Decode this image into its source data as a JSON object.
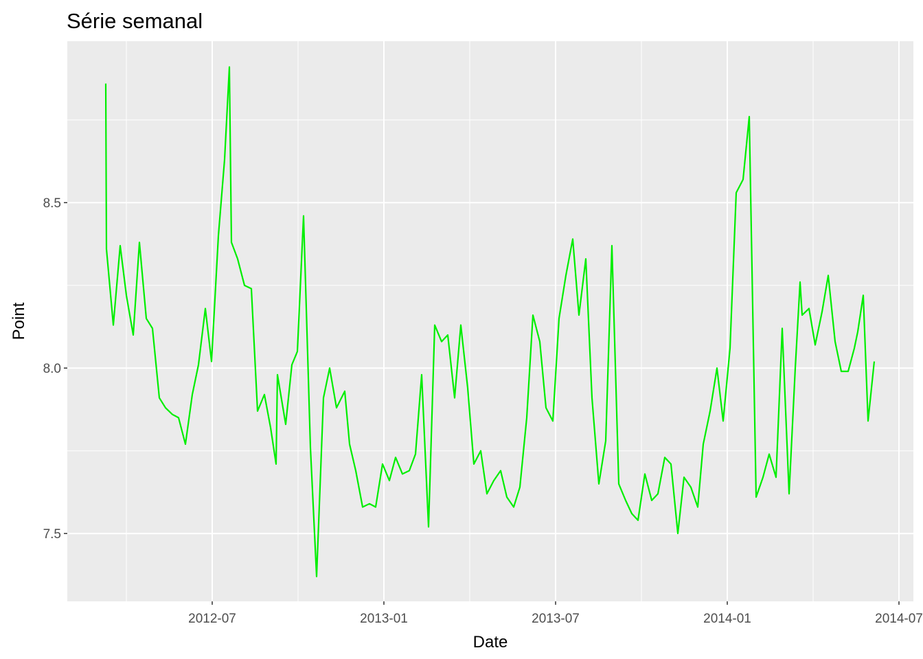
{
  "chart_data": {
    "type": "line",
    "title": "Série semanal",
    "xlabel": "Date",
    "ylabel": "Point",
    "x": [
      2012.19,
      2012.192,
      2012.212,
      2012.232,
      2012.25,
      2012.27,
      2012.288,
      2012.308,
      2012.326,
      2012.346,
      2012.364,
      2012.384,
      2012.402,
      2012.422,
      2012.442,
      2012.46,
      2012.48,
      2012.498,
      2012.518,
      2012.536,
      2012.55,
      2012.556,
      2012.574,
      2012.594,
      2012.614,
      2012.632,
      2012.652,
      2012.67,
      2012.686,
      2012.69,
      2012.714,
      2012.732,
      2012.748,
      2012.766,
      2012.786,
      2012.804,
      2012.824,
      2012.842,
      2012.862,
      2012.886,
      2012.9,
      2012.918,
      2012.938,
      2012.958,
      2012.976,
      2012.996,
      2013.016,
      2013.034,
      2013.054,
      2013.074,
      2013.092,
      2013.11,
      2013.13,
      2013.148,
      2013.168,
      2013.186,
      2013.206,
      2013.224,
      2013.244,
      2013.262,
      2013.282,
      2013.3,
      2013.32,
      2013.34,
      2013.358,
      2013.378,
      2013.396,
      2013.416,
      2013.434,
      2013.454,
      2013.472,
      2013.492,
      2013.51,
      2013.53,
      2013.55,
      2013.568,
      2013.588,
      2013.606,
      2013.626,
      2013.646,
      2013.664,
      2013.684,
      2013.704,
      2013.722,
      2013.74,
      2013.76,
      2013.78,
      2013.798,
      2013.818,
      2013.836,
      2013.856,
      2013.874,
      2013.894,
      2013.914,
      2013.93,
      2013.95,
      2013.97,
      2013.988,
      2014.008,
      2014.026,
      2014.046,
      2014.064,
      2014.084,
      2014.104,
      2014.122,
      2014.142,
      2014.16,
      2014.18,
      2014.198,
      2014.212,
      2014.218,
      2014.238,
      2014.256,
      2014.276,
      2014.294,
      2014.314,
      2014.332,
      2014.352,
      2014.37,
      2014.38,
      2014.396,
      2014.41,
      2014.428
    ],
    "values": [
      8.86,
      8.36,
      8.13,
      8.37,
      8.22,
      8.1,
      8.38,
      8.15,
      8.12,
      7.91,
      7.88,
      7.86,
      7.85,
      7.77,
      7.92,
      8.01,
      8.18,
      8.02,
      8.4,
      8.63,
      8.91,
      8.38,
      8.33,
      8.25,
      8.24,
      7.87,
      7.92,
      7.82,
      7.71,
      7.98,
      7.83,
      8.01,
      8.05,
      8.46,
      7.76,
      7.37,
      7.91,
      8.0,
      7.88,
      7.93,
      7.77,
      7.69,
      7.58,
      7.59,
      7.58,
      7.71,
      7.66,
      7.73,
      7.68,
      7.69,
      7.74,
      7.98,
      7.52,
      8.13,
      8.08,
      8.1,
      7.91,
      8.13,
      7.94,
      7.71,
      7.75,
      7.62,
      7.66,
      7.69,
      7.61,
      7.58,
      7.64,
      7.85,
      8.16,
      8.08,
      7.88,
      7.84,
      8.15,
      8.28,
      8.39,
      8.16,
      8.33,
      7.91,
      7.65,
      7.78,
      8.37,
      7.65,
      7.6,
      7.56,
      7.54,
      7.68,
      7.6,
      7.62,
      7.73,
      7.71,
      7.5,
      7.67,
      7.64,
      7.58,
      7.77,
      7.87,
      8.0,
      7.84,
      8.06,
      8.53,
      8.57,
      8.76,
      7.61,
      7.67,
      7.74,
      7.67,
      8.12,
      7.62,
      8.0,
      8.26,
      8.16,
      8.18,
      8.07,
      8.17,
      8.28,
      8.08,
      7.99,
      7.99,
      8.06,
      8.11,
      8.22,
      7.84,
      8.02
    ],
    "color": "#00ee00",
    "xlim": [
      2012.078,
      2014.542
    ],
    "xticks": [
      {
        "value": 2012.5,
        "label": "2012-07"
      },
      {
        "value": 2013,
        "label": "2013-01"
      },
      {
        "value": 2013.5,
        "label": "2013-07"
      },
      {
        "value": 2014,
        "label": "2014-01"
      },
      {
        "value": 2014.5,
        "label": "2014-07"
      }
    ],
    "ylim": [
      7.295,
      8.988
    ],
    "yticks": [
      7.5,
      {
        "value": 8,
        "label": "8.0"
      },
      8.5
    ],
    "grid": true
  }
}
